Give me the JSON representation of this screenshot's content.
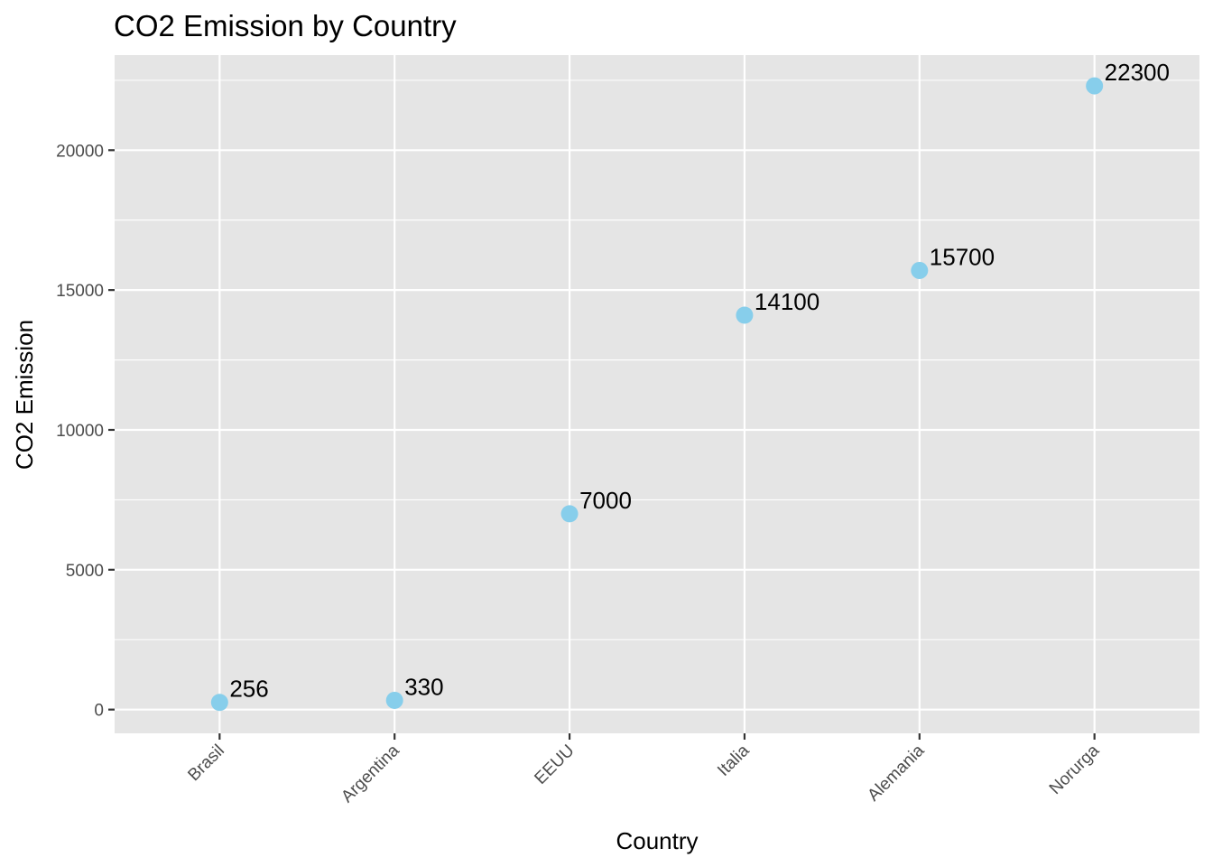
{
  "chart_data": {
    "type": "scatter",
    "title": "CO2 Emission by Country",
    "xlabel": "Country",
    "ylabel": "CO2 Emission",
    "categories": [
      "Brasil",
      "Argentina",
      "EEUU",
      "Italia",
      "Alemania",
      "Norurga"
    ],
    "values": [
      256,
      330,
      7000,
      14100,
      15700,
      22300
    ],
    "data_labels": [
      "256",
      "330",
      "7000",
      "14100",
      "15700",
      "22300"
    ],
    "yticks": [
      0,
      5000,
      10000,
      15000,
      20000
    ],
    "ytick_labels": [
      "0",
      "5000",
      "10000",
      "15000",
      "20000"
    ],
    "ylim": [
      -850,
      23400
    ],
    "grid": true,
    "point_color": "#87CEEB",
    "panel_color": "#E5E5E5",
    "grid_color": "#FFFFFF"
  }
}
